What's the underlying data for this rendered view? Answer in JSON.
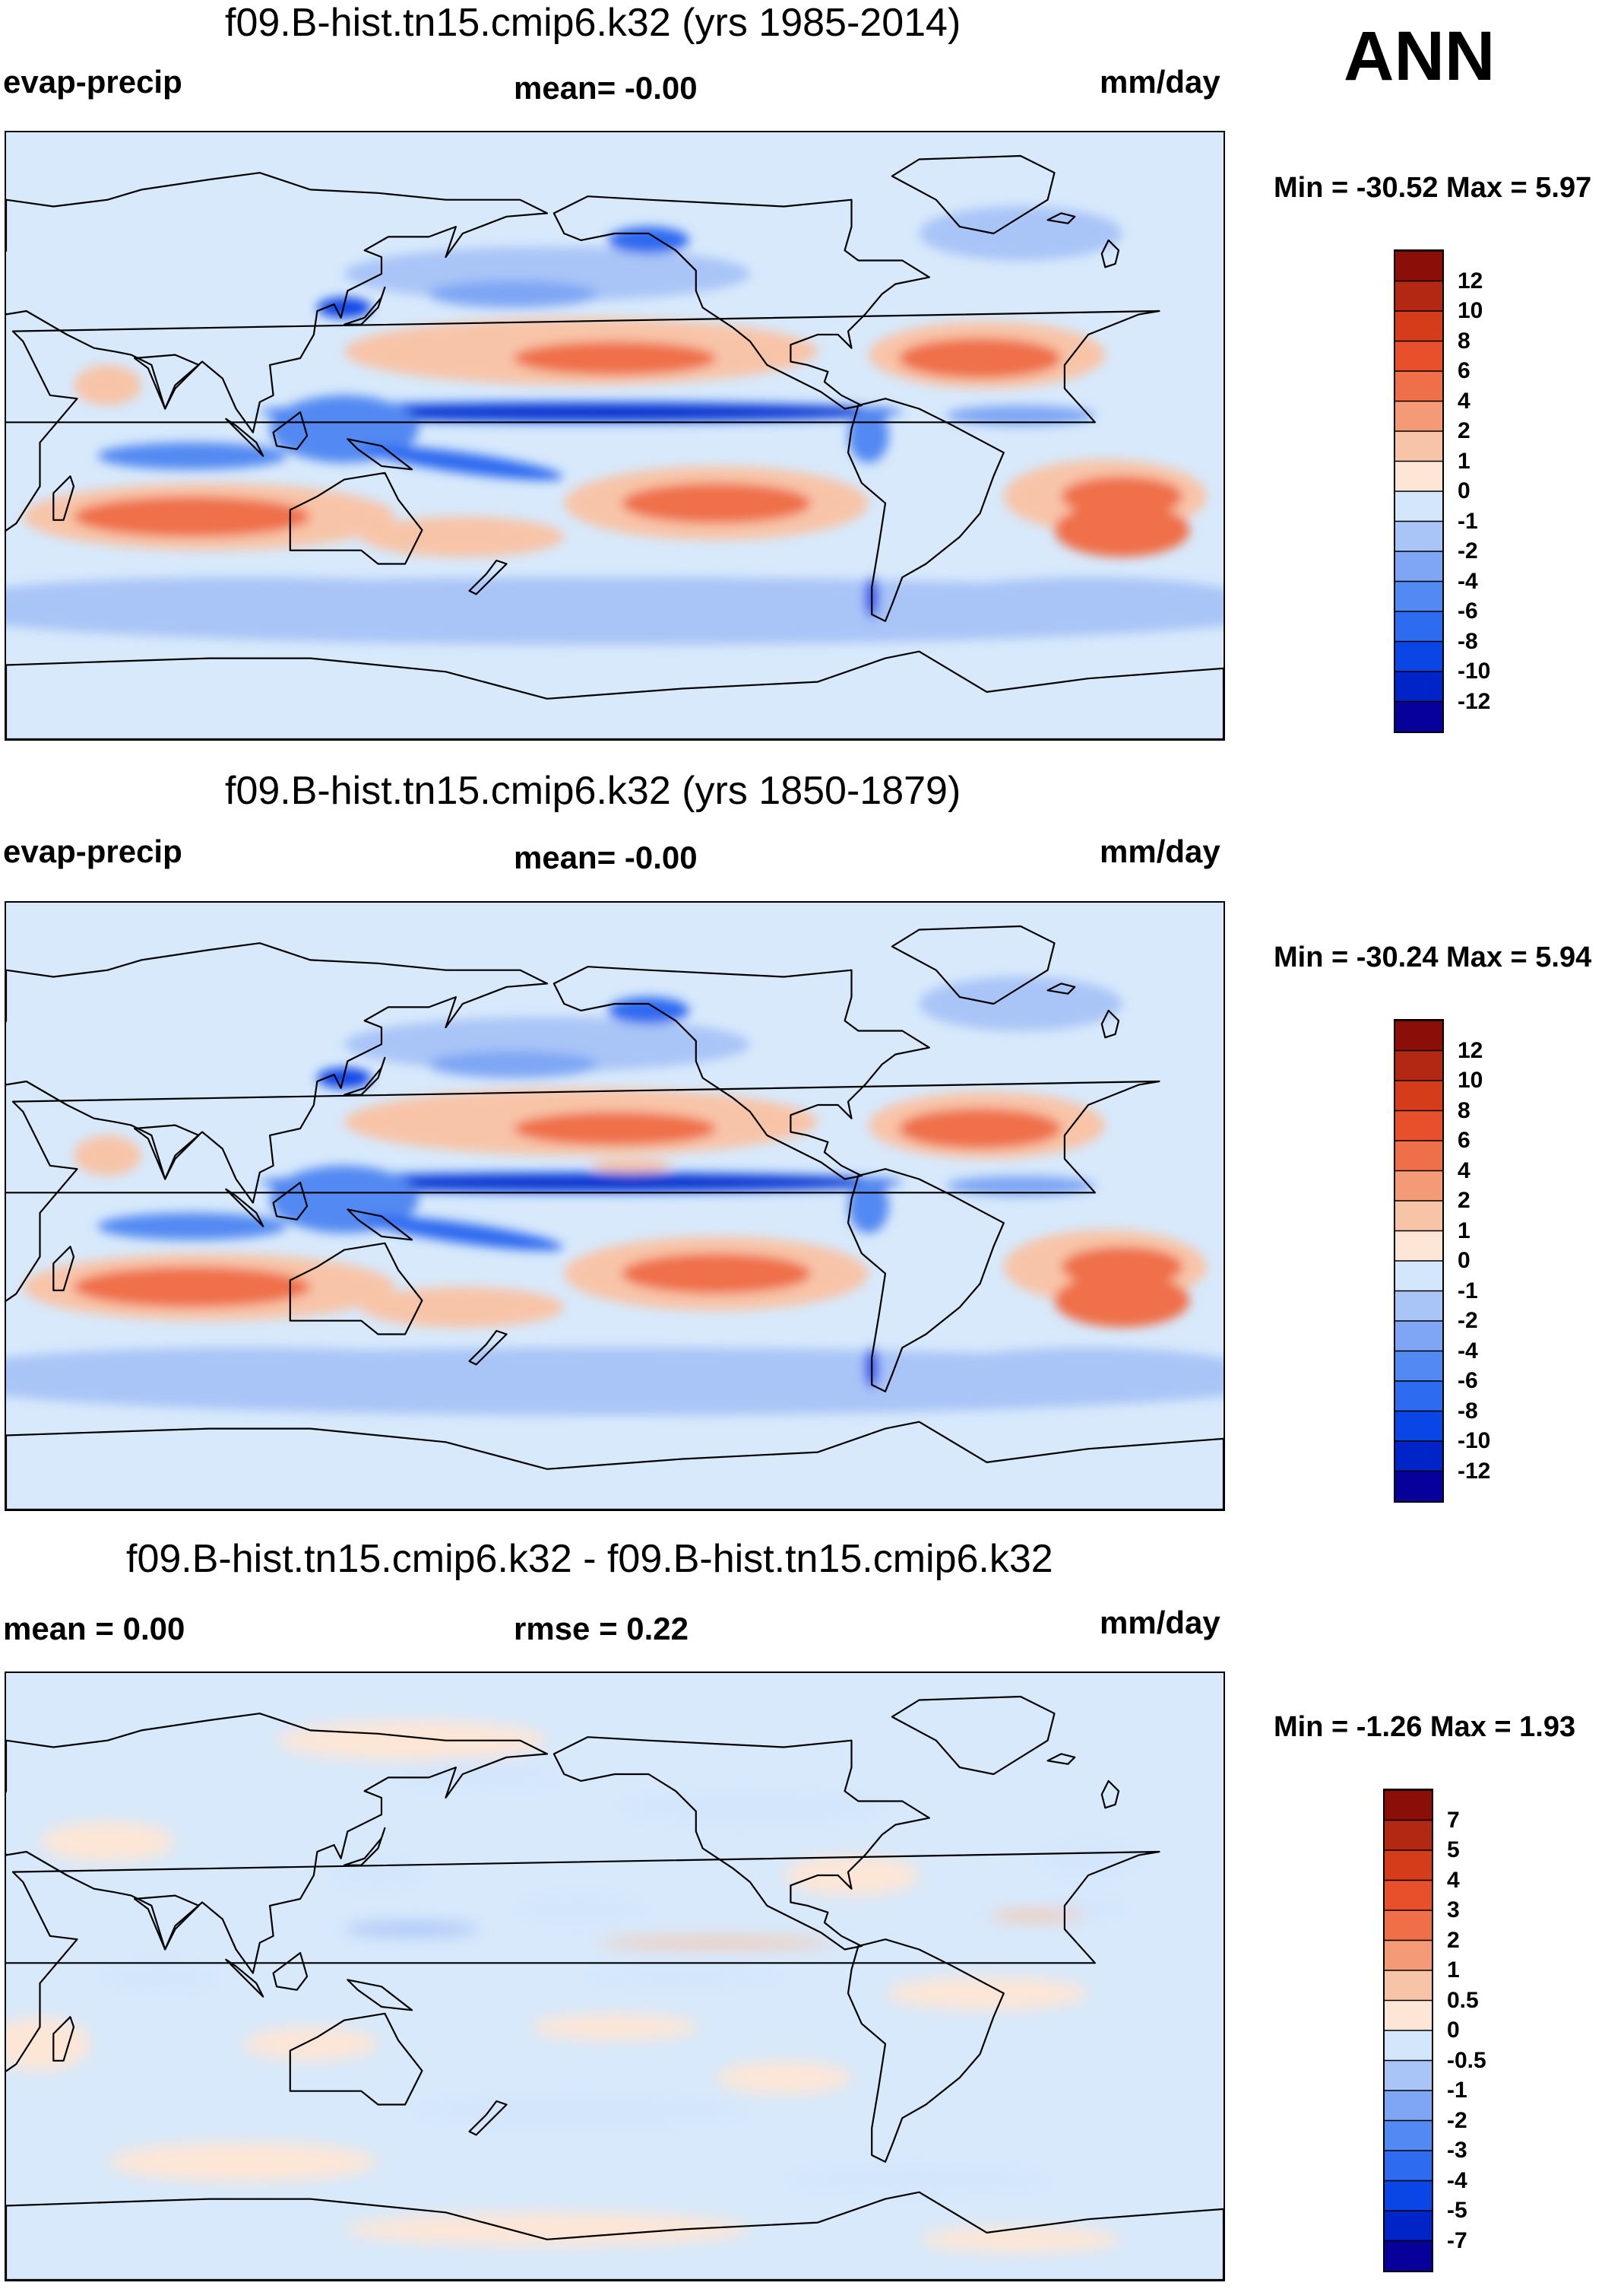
{
  "season": "ANN",
  "colors": {
    "ocean_base": "#d7e9fb",
    "continent_stroke": "#000000",
    "abs_levels": [
      "#08009a",
      "#0024c8",
      "#0a45e6",
      "#2d6bf0",
      "#5289f2",
      "#7ea6f4",
      "#a9c4f7",
      "#d4e6fb",
      "#fde6d6",
      "#f8c4a8",
      "#f59a76",
      "#ef7048",
      "#e8502b",
      "#d53c19",
      "#b32812",
      "#8c0e08"
    ],
    "diff_levels": [
      "#08009a",
      "#0024c8",
      "#0a45e6",
      "#2d6bf0",
      "#5289f2",
      "#7ea6f4",
      "#a9c4f7",
      "#d4e6fb",
      "#fde6d6",
      "#f8c4a8",
      "#f59a76",
      "#ef7048",
      "#e8502b",
      "#d53c19",
      "#b32812",
      "#8c0e08"
    ]
  },
  "panels": [
    {
      "title": "f09.B-hist.tn15.cmip6.k32 (yrs 1985-2014)",
      "left_label": "evap-precip",
      "center_label": "mean=  -0.00",
      "units": "mm/day",
      "minmax": "Min = -30.52 Max =   5.97"
    },
    {
      "title": "f09.B-hist.tn15.cmip6.k32 (yrs 1850-1879)",
      "left_label": "evap-precip",
      "center_label": "mean=  -0.00",
      "units": "mm/day",
      "minmax": "Min = -30.24 Max =   5.94"
    },
    {
      "title": "f09.B-hist.tn15.cmip6.k32 - f09.B-hist.tn15.cmip6.k32",
      "left_label": "mean =   0.00",
      "center_label": "rmse =   0.22",
      "units": "mm/day",
      "minmax": "Min =  -1.26 Max =   1.93"
    }
  ],
  "colorbars": {
    "abs_ticks": [
      "12",
      "10",
      "8",
      "6",
      "4",
      "2",
      "1",
      "0",
      "-1",
      "-2",
      "-4",
      "-6",
      "-8",
      "-10",
      "-12"
    ],
    "diff_ticks": [
      "7",
      "5",
      "4",
      "3",
      "2",
      "1",
      "0.5",
      "0",
      "-0.5",
      "-1",
      "-2",
      "-3",
      "-4",
      "-5",
      "-7"
    ]
  },
  "chart_data": [
    {
      "type": "heatmap",
      "title": "f09.B-hist.tn15.cmip6.k32 (yrs 1985-2014)",
      "variable": "evap-precip",
      "units": "mm/day",
      "mean": -0.0,
      "min": -30.52,
      "max": 5.97,
      "levels": [
        -12,
        -10,
        -8,
        -6,
        -4,
        -2,
        -1,
        0,
        1,
        2,
        4,
        6,
        8,
        10,
        12
      ],
      "projection": "global cylindrical equidistant, Pacific-centered"
    },
    {
      "type": "heatmap",
      "title": "f09.B-hist.tn15.cmip6.k32 (yrs 1850-1879)",
      "variable": "evap-precip",
      "units": "mm/day",
      "mean": -0.0,
      "min": -30.24,
      "max": 5.94,
      "levels": [
        -12,
        -10,
        -8,
        -6,
        -4,
        -2,
        -1,
        0,
        1,
        2,
        4,
        6,
        8,
        10,
        12
      ],
      "projection": "global cylindrical equidistant, Pacific-centered"
    },
    {
      "type": "heatmap",
      "title": "f09.B-hist.tn15.cmip6.k32 - f09.B-hist.tn15.cmip6.k32",
      "variable": "evap-precip difference",
      "units": "mm/day",
      "mean": 0.0,
      "rmse": 0.22,
      "min": -1.26,
      "max": 1.93,
      "levels": [
        -7,
        -5,
        -4,
        -3,
        -2,
        -1,
        -0.5,
        0,
        0.5,
        1,
        2,
        3,
        4,
        5,
        7
      ],
      "projection": "global cylindrical equidistant, Pacific-centered"
    }
  ]
}
